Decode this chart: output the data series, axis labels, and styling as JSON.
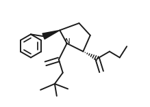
{
  "bg_color": "#ffffff",
  "line_color": "#1a1a1a",
  "bond_lw": 1.4
}
